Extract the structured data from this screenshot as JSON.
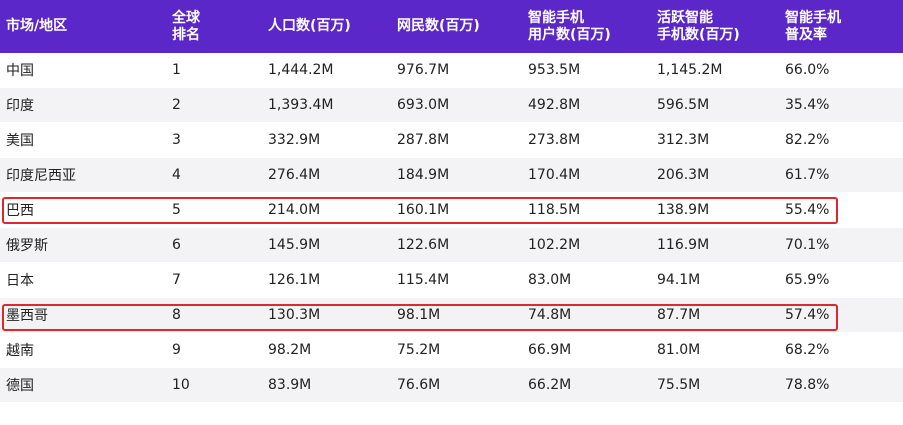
{
  "headers": [
    "市场/地区",
    "全球\n排名",
    "人口数(百万)",
    "网民数(百万)",
    "智能手机\n用户数(百万)",
    "活跃智能\n手机数(百万)",
    "智能手机\n普及率"
  ],
  "rows": [
    [
      "中国",
      "1",
      "1,444.2M",
      "976.7M",
      "953.5M",
      "1,145.2M",
      "66.0%"
    ],
    [
      "印度",
      "2",
      "1,393.4M",
      "693.0M",
      "492.8M",
      "596.5M",
      "35.4%"
    ],
    [
      "美国",
      "3",
      "332.9M",
      "287.8M",
      "273.8M",
      "312.3M",
      "82.2%"
    ],
    [
      "印度尼西亚",
      "4",
      "276.4M",
      "184.9M",
      "170.4M",
      "206.3M",
      "61.7%"
    ],
    [
      "巴西",
      "5",
      "214.0M",
      "160.1M",
      "118.5M",
      "138.9M",
      "55.4%"
    ],
    [
      "俄罗斯",
      "6",
      "145.9M",
      "122.6M",
      "102.2M",
      "116.9M",
      "70.1%"
    ],
    [
      "日本",
      "7",
      "126.1M",
      "115.4M",
      "83.0M",
      "94.1M",
      "65.9%"
    ],
    [
      "墨西哥",
      "8",
      "130.3M",
      "98.1M",
      "74.8M",
      "87.7M",
      "57.4%"
    ],
    [
      "越南",
      "9",
      "98.2M",
      "75.2M",
      "66.9M",
      "81.0M",
      "68.2%"
    ],
    [
      "德国",
      "10",
      "83.9M",
      "76.6M",
      "66.2M",
      "75.5M",
      "78.8%"
    ]
  ],
  "colors": {
    "header_bg": "#5b27c9",
    "highlight_border": "#e0262e",
    "row_alt_bg": "#f3f3f5"
  }
}
